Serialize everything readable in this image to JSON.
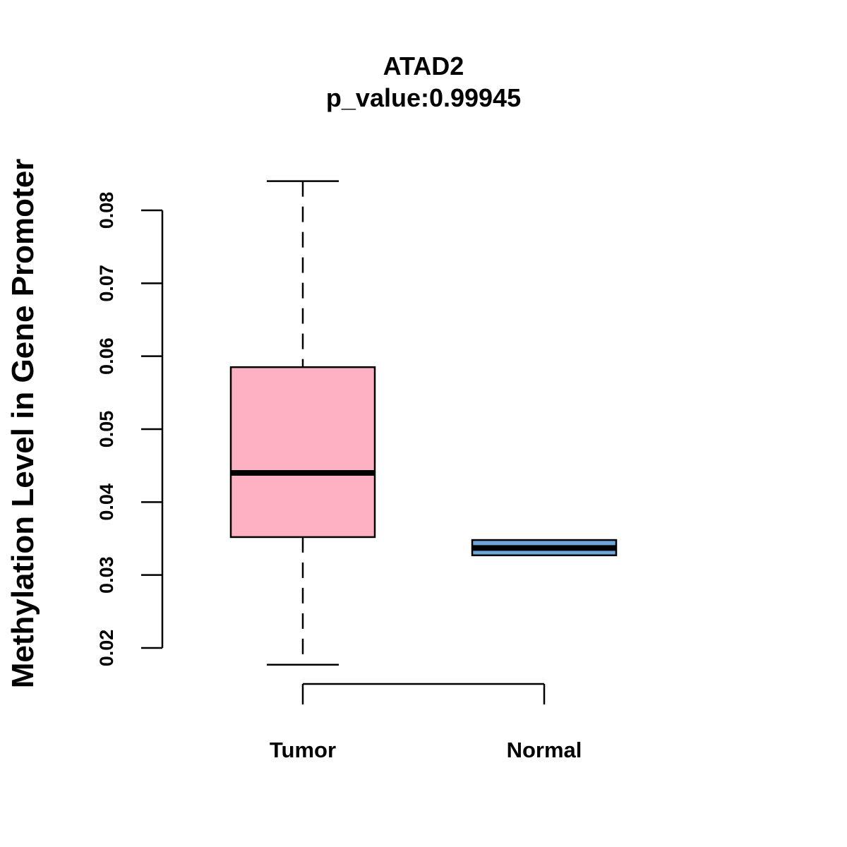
{
  "chart_data": {
    "type": "boxplot",
    "title": "ATAD2",
    "subtitle": "p_value:0.99945",
    "xlabel": "",
    "ylabel": "Methylation Level in Gene Promoter",
    "ylim": [
      0.02,
      0.08
    ],
    "yticks": [
      0.02,
      0.03,
      0.04,
      0.05,
      0.06,
      0.07,
      0.08
    ],
    "ytick_labels": [
      "0.02",
      "0.03",
      "0.04",
      "0.05",
      "0.06",
      "0.07",
      "0.08"
    ],
    "categories": [
      "Tumor",
      "Normal"
    ],
    "series": [
      {
        "name": "Tumor",
        "color": "#FDB1C3",
        "whisker_low": 0.0177,
        "q1": 0.0352,
        "median": 0.044,
        "q3": 0.0585,
        "whisker_high": 0.084
      },
      {
        "name": "Normal",
        "color": "#6CA6DB",
        "whisker_low": 0.0327,
        "q1": 0.0327,
        "median": 0.0337,
        "q3": 0.0348,
        "whisker_high": 0.0348
      }
    ]
  }
}
